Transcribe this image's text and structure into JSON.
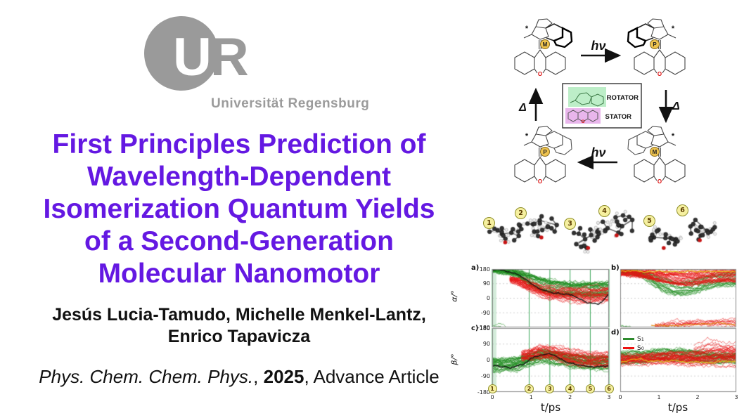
{
  "logo": {
    "letter_u": "U",
    "letter_r": "R",
    "institution": "Universität Regensburg",
    "gray": "#9a9a9a"
  },
  "title": {
    "color": "#6418e2",
    "lines": [
      "First Principles Prediction of",
      "Wavelength-Dependent",
      "Isomerization Quantum Yields",
      "of a Second-Generation",
      "Molecular Nanomotor"
    ]
  },
  "authors": {
    "line1": "Jesús Lucia-Tamudo, Michelle Menkel-Lantz,",
    "line2": "Enrico Tapavicza"
  },
  "citation": {
    "journal": "Phys. Chem. Chem. Phys.",
    "sep1": ", ",
    "year": "2025",
    "sep2": ", ",
    "status": "Advance Article"
  },
  "cycle": {
    "photo_label": "hν",
    "thermal_label": "Δ",
    "rotator_label": "ROTATOR",
    "stator_label": "STATOR",
    "oxygen_label": "O",
    "stereo_label": "*",
    "structures": [
      {
        "badge": "M"
      },
      {
        "badge": "P"
      },
      {
        "badge": "P"
      },
      {
        "badge": "M"
      }
    ],
    "badge_fill": "#eec34f",
    "badge_border": "#8a6d1f",
    "rotator_fill": "#bdeec8",
    "stator_fill": "#e9b6ec",
    "oxygen_color": "#dd1111"
  },
  "conformers": {
    "labels": [
      "1",
      "2",
      "3",
      "4",
      "5",
      "6"
    ],
    "chip_fill": "#f6f0a0",
    "chip_border": "#8f8f2a"
  },
  "chart_data": {
    "type": "line",
    "xlabel": "t/ps",
    "xlim": [
      0,
      3
    ],
    "x_ticks": [
      "0",
      "1",
      "2",
      "3"
    ],
    "ylim": [
      -180,
      180
    ],
    "y_ticks": [
      "180",
      "90",
      "0",
      "-90",
      "-180"
    ],
    "grid_y": [
      90,
      0,
      -90
    ],
    "panel_labels": [
      "a)",
      "b)",
      "c)",
      "d)"
    ],
    "event_times": [
      0,
      0.95,
      1.48,
      2.0,
      2.52,
      3.0
    ],
    "event_labels": [
      "1",
      "2",
      "3",
      "4",
      "5",
      "6"
    ],
    "legend": {
      "position": "top-left-of-panel-d",
      "entries": [
        {
          "name": "S",
          "sub": "1",
          "color": "#2e8b2e"
        },
        {
          "name": "S",
          "sub": "0",
          "color": "#ee1111"
        }
      ]
    },
    "colors": {
      "s1_green": "#1f8c1f",
      "s0_red": "#e81212",
      "mean_black": "#101010",
      "aux_yellow": "#e2c418",
      "aux_orange": "#e08a10",
      "event_line": "#3aa85a",
      "event_band": "rgba(130,200,150,0.35)"
    },
    "panels": [
      {
        "id": "a",
        "ylabel": "α/°",
        "y_tick_labels": true,
        "event_lines": true,
        "series": [
          {
            "role": "S1-ensemble",
            "color": "s1_green",
            "n": 42,
            "env": [
              [
                0,
                172,
                6
              ],
              [
                0.5,
                158,
                16
              ],
              [
                1.0,
                95,
                45
              ],
              [
                1.5,
                62,
                45
              ],
              [
                2.0,
                55,
                45
              ],
              [
                2.5,
                55,
                45
              ],
              [
                3,
                62,
                45
              ]
            ]
          },
          {
            "role": "S1-outliers",
            "color": "s1_green",
            "n": 3,
            "env": [
              [
                0,
                -174,
                3
              ],
              [
                0.35,
                -176,
                3
              ]
            ]
          },
          {
            "role": "S0-ensemble",
            "color": "s0_red",
            "n": 32,
            "env": [
              [
                0.45,
                118,
                18
              ],
              [
                0.8,
                80,
                40
              ],
              [
                1.2,
                40,
                45
              ],
              [
                1.6,
                30,
                50
              ],
              [
                2.0,
                25,
                55
              ],
              [
                2.5,
                18,
                58
              ],
              [
                3,
                30,
                55
              ]
            ]
          },
          {
            "role": "ensemble-mean",
            "color": "mean_black",
            "n": 1,
            "w": 1.4,
            "noise": 6,
            "env": [
              [
                0,
                175,
                2
              ],
              [
                0.5,
                160,
                3
              ],
              [
                0.9,
                95,
                4
              ],
              [
                1.2,
                45,
                4
              ],
              [
                1.6,
                35,
                5
              ],
              [
                2.0,
                20,
                5
              ],
              [
                2.4,
                -30,
                5
              ],
              [
                2.7,
                -35,
                5
              ],
              [
                3,
                70,
                3
              ]
            ]
          }
        ]
      },
      {
        "id": "b",
        "y_tick_labels": false,
        "event_lines": false,
        "series": [
          {
            "role": "S1-ensemble",
            "color": "s1_green",
            "n": 26,
            "env": [
              [
                0,
                165,
                12
              ],
              [
                0.5,
                150,
                22
              ],
              [
                1.0,
                80,
                50
              ],
              [
                1.4,
                52,
                45
              ],
              [
                1.8,
                72,
                50
              ],
              [
                2.3,
                110,
                45
              ],
              [
                3,
                120,
                45
              ]
            ]
          },
          {
            "role": "S1-bottom",
            "color": "s1_green",
            "n": 2,
            "env": [
              [
                0,
                -175,
                4
              ],
              [
                0.3,
                -175,
                4
              ]
            ]
          },
          {
            "role": "S0-ensemble",
            "color": "s0_red",
            "n": 36,
            "env": [
              [
                0,
                160,
                18
              ],
              [
                0.5,
                150,
                25
              ],
              [
                1.0,
                132,
                40
              ],
              [
                1.5,
                120,
                50
              ],
              [
                2.0,
                130,
                48
              ],
              [
                2.5,
                140,
                42
              ],
              [
                3,
                140,
                42
              ]
            ]
          },
          {
            "role": "S0-lower-band",
            "color": "s0_red",
            "n": 9,
            "env": [
              [
                0.9,
                -168,
                8
              ],
              [
                1.5,
                -155,
                20
              ],
              [
                2.0,
                -150,
                25
              ],
              [
                2.5,
                -150,
                26
              ],
              [
                3,
                -143,
                30
              ]
            ]
          },
          {
            "role": "aux-top",
            "color": "aux_yellow",
            "n": 1,
            "w": 1.2,
            "noise": 6,
            "env": [
              [
                0,
                168,
                4
              ],
              [
                1.5,
                166,
                5
              ],
              [
                3,
                168,
                5
              ]
            ]
          },
          {
            "role": "aux-bottom",
            "color": "aux_orange",
            "n": 1,
            "w": 1.2,
            "noise": 6,
            "env": [
              [
                0.8,
                -172,
                4
              ],
              [
                2,
                -164,
                8
              ],
              [
                3,
                -160,
                8
              ]
            ]
          }
        ]
      },
      {
        "id": "c",
        "ylabel": "β/°",
        "y_tick_labels": true,
        "event_lines": true,
        "x_tick_labels": true,
        "event_chips": true,
        "series": [
          {
            "role": "S1-ensemble",
            "color": "s1_green",
            "n": 42,
            "env": [
              [
                0,
                -30,
                36
              ],
              [
                0.5,
                -25,
                36
              ],
              [
                0.9,
                5,
                36
              ],
              [
                1.2,
                25,
                36
              ],
              [
                1.6,
                10,
                40
              ],
              [
                2.0,
                -5,
                40
              ],
              [
                2.5,
                -15,
                40
              ],
              [
                3,
                -15,
                40
              ]
            ]
          },
          {
            "role": "S0-ensemble",
            "color": "s0_red",
            "n": 32,
            "env": [
              [
                0.75,
                22,
                25
              ],
              [
                1.1,
                45,
                35
              ],
              [
                1.5,
                35,
                40
              ],
              [
                2.0,
                10,
                45
              ],
              [
                2.5,
                0,
                46
              ],
              [
                3,
                0,
                46
              ]
            ]
          },
          {
            "role": "ensemble-mean",
            "color": "mean_black",
            "n": 1,
            "w": 1.4,
            "noise": 6,
            "env": [
              [
                0,
                -35,
                3
              ],
              [
                0.4,
                -45,
                3
              ],
              [
                0.8,
                -10,
                4
              ],
              [
                1.1,
                35,
                4
              ],
              [
                1.4,
                40,
                4
              ],
              [
                1.7,
                0,
                5
              ],
              [
                2.0,
                -20,
                5
              ],
              [
                2.4,
                -40,
                5
              ],
              [
                2.7,
                -30,
                5
              ],
              [
                3,
                -35,
                3
              ]
            ]
          }
        ]
      },
      {
        "id": "d",
        "y_tick_labels": false,
        "event_lines": false,
        "x_tick_labels": true,
        "legend": true,
        "series": [
          {
            "role": "S1-ensemble",
            "color": "s1_green",
            "n": 30,
            "env": [
              [
                0,
                12,
                34
              ],
              [
                0.5,
                15,
                34
              ],
              [
                1.0,
                26,
                34
              ],
              [
                1.5,
                25,
                34
              ],
              [
                2.0,
                15,
                32
              ],
              [
                2.5,
                10,
                28
              ],
              [
                3,
                10,
                28
              ]
            ]
          },
          {
            "role": "S0-ensemble",
            "color": "s0_red",
            "n": 36,
            "env": [
              [
                0,
                0,
                28
              ],
              [
                0.7,
                5,
                34
              ],
              [
                1.2,
                10,
                40
              ],
              [
                1.7,
                5,
                44
              ],
              [
                2.2,
                12,
                52
              ],
              [
                2.7,
                18,
                56
              ],
              [
                3,
                15,
                56
              ]
            ]
          },
          {
            "role": "S0-spikes",
            "color": "s0_red",
            "n": 5,
            "env": [
              [
                1.9,
                60,
                28
              ],
              [
                2.2,
                92,
                38
              ],
              [
                2.6,
                70,
                40
              ],
              [
                3,
                62,
                40
              ]
            ]
          },
          {
            "role": "aux",
            "color": "aux_yellow",
            "n": 1,
            "w": 1.2,
            "noise": 8,
            "env": [
              [
                0,
                5,
                10
              ],
              [
                1,
                0,
                12
              ],
              [
                2,
                -5,
                12
              ],
              [
                3,
                0,
                12
              ]
            ]
          }
        ]
      }
    ]
  }
}
